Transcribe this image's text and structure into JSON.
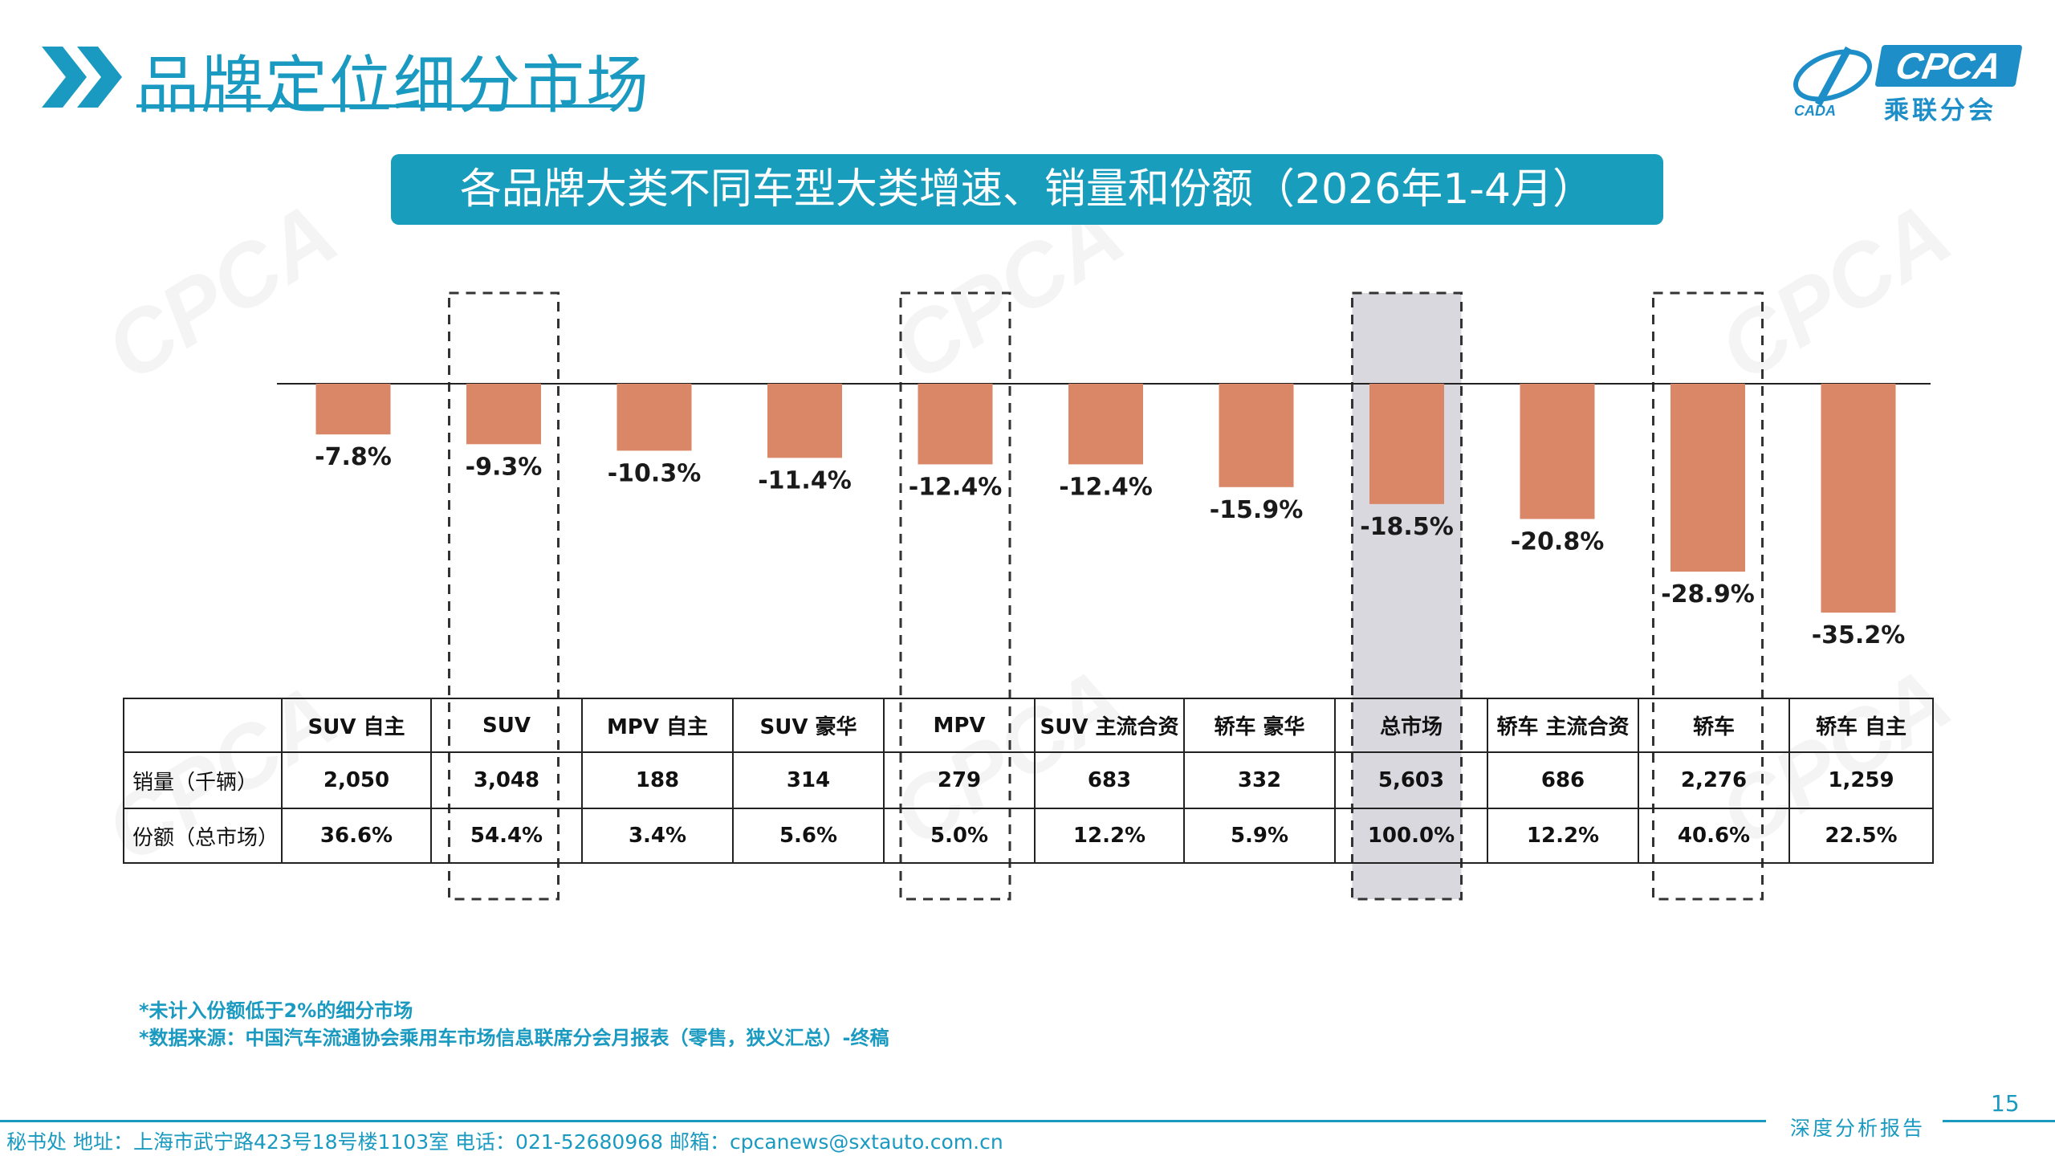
{
  "header": {
    "title": "品牌定位细分市场",
    "logo_text": "CPCA",
    "logo_cn": "乘联分会",
    "logo_emblem_text": "CADA"
  },
  "chart_title": "各品牌大类不同车型大类增速、销量和份额（2026年1-4月）",
  "chart_data": {
    "type": "bar",
    "title": "各品牌大类不同车型大类增速、销量和份额（2026年1-4月）",
    "categories": [
      "SUV 自主",
      "SUV",
      "MPV 自主",
      "SUV 豪华",
      "MPV",
      "SUV 主流合资",
      "轿车 豪华",
      "总市场",
      "轿车 主流合资",
      "轿车",
      "轿车 自主"
    ],
    "values": [
      -7.8,
      -9.3,
      -10.3,
      -11.4,
      -12.4,
      -12.4,
      -15.9,
      -18.5,
      -20.8,
      -28.9,
      -35.2
    ],
    "labels": [
      "-7.8%",
      "-9.3%",
      "-10.3%",
      "-11.4%",
      "-12.4%",
      "-12.4%",
      "-15.9%",
      "-18.5%",
      "-20.8%",
      "-28.9%",
      "-35.2%"
    ],
    "highlighted": [
      "SUV",
      "MPV",
      "总市场",
      "轿车"
    ],
    "shaded": [
      "总市场"
    ],
    "bar_color": "#D98767",
    "highlight_fill": "#D9D8DF",
    "ylim": [
      -40,
      0
    ]
  },
  "table": {
    "headers": [
      "",
      "SUV 自主",
      "SUV",
      "MPV 自主",
      "SUV 豪华",
      "MPV",
      "SUV 主流合资",
      "轿车 豪华",
      "总市场",
      "轿车 主流合资",
      "轿车",
      "轿车 自主"
    ],
    "rows": [
      {
        "label": "销量（千辆）",
        "values": [
          "2,050",
          "3,048",
          "188",
          "314",
          "279",
          "683",
          "332",
          "5,603",
          "686",
          "2,276",
          "1,259"
        ]
      },
      {
        "label": "份额（总市场）",
        "values": [
          "36.6%",
          "54.4%",
          "3.4%",
          "5.6%",
          "5.0%",
          "12.2%",
          "5.9%",
          "100.0%",
          "12.2%",
          "40.6%",
          "22.5%"
        ]
      }
    ]
  },
  "notes": [
    "*未计入份额低于2%的细分市场",
    "*数据来源：中国汽车流通协会乘用车市场信息联席分会月报表（零售，狭义汇总）-终稿"
  ],
  "page_number": "15",
  "footer": {
    "contact": "秘书处   地址：上海市武宁路423号18号楼1103室  电话：021-52680968   邮箱：cpcanews@sxtauto.com.cn",
    "report_tag": "深度分析报告"
  },
  "colors": {
    "accent": "#1A9AC0",
    "banner": "#199DBD",
    "bar": "#D98767"
  }
}
